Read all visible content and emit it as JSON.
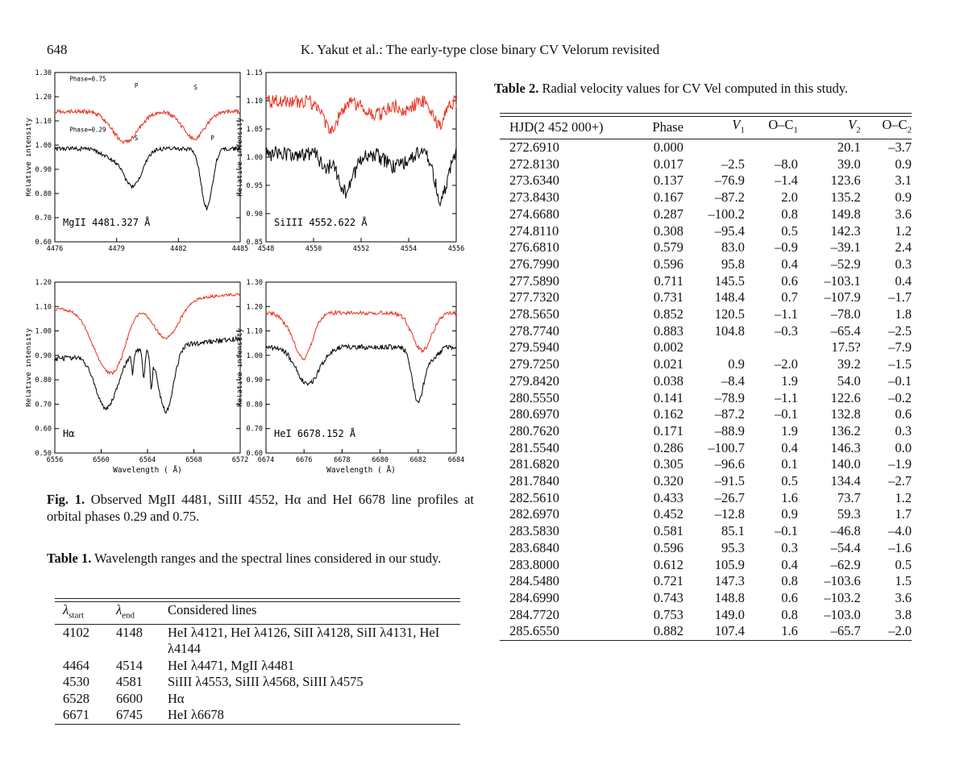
{
  "header": {
    "page_number": "648",
    "running_head": "K. Yakut et al.: The early-type close binary CV Velorum revisited"
  },
  "figure": {
    "caption_label": "Fig. 1.",
    "caption_text": "Observed MgII 4481, SiIII 4552, Hα and HeI 6678 line profiles at orbital phases 0.29 and 0.75.",
    "colors": {
      "phase_075": "#e8311f",
      "phase_029": "#000000"
    },
    "panels": [
      {
        "id": "mg",
        "label": "MgII 4481.327 Å",
        "ylabel": "Relative intensity",
        "xlabel": "",
        "yticks": [
          "0.60",
          "0.70",
          "0.80",
          "0.90",
          "1.00",
          "1.10",
          "1.20",
          "1.30"
        ],
        "xticks": [
          "4476",
          "4479",
          "4482",
          "4485"
        ],
        "annotations": [
          "Phase=0.75",
          "P",
          "S",
          "Phase=0.29",
          "S",
          "P"
        ]
      },
      {
        "id": "si",
        "label": "SiIII 4552.622 Å",
        "ylabel": "Relative intensity",
        "xlabel": "",
        "yticks": [
          "0.85",
          "0.90",
          "0.95",
          "1.00",
          "1.05",
          "1.10",
          "1.15"
        ],
        "xticks": [
          "4548",
          "4550",
          "4552",
          "4554",
          "4556"
        ],
        "annotations": []
      },
      {
        "id": "ha",
        "label": "Hα",
        "ylabel": "Relative intensity",
        "xlabel": "Wavelength ( Å)",
        "yticks": [
          "0.50",
          "0.60",
          "0.70",
          "0.80",
          "0.90",
          "1.00",
          "1.10",
          "1.20"
        ],
        "xticks": [
          "6556",
          "6560",
          "6564",
          "6568",
          "6572"
        ],
        "annotations": []
      },
      {
        "id": "he",
        "label": "HeI 6678.152 Å",
        "ylabel": "Relative intensity",
        "xlabel": "Wavelength ( Å)",
        "yticks": [
          "0.60",
          "0.70",
          "0.80",
          "0.90",
          "1.00",
          "1.10",
          "1.20",
          "1.30"
        ],
        "xticks": [
          "6674",
          "6676",
          "6678",
          "6680",
          "6682",
          "6684"
        ],
        "annotations": []
      }
    ]
  },
  "table1": {
    "caption_label": "Table 1.",
    "caption_text": "Wavelength ranges and the spectral lines considered in our study.",
    "headers": {
      "start": "λ",
      "start_sub": "start",
      "end": "λ",
      "end_sub": "end",
      "lines": "Considered lines"
    },
    "rows": [
      {
        "start": "4102",
        "end": "4148",
        "lines": "HeI λ4121, HeI λ4126, SiII λ4128, SiII λ4131, HeI λ4144"
      },
      {
        "start": "4464",
        "end": "4514",
        "lines": "HeI λ4471, MgII λ4481"
      },
      {
        "start": "4530",
        "end": "4581",
        "lines": "SiIII λ4553, SiIII λ4568, SiIII λ4575"
      },
      {
        "start": "6528",
        "end": "6600",
        "lines": "Hα"
      },
      {
        "start": "6671",
        "end": "6745",
        "lines": "HeI λ6678"
      }
    ]
  },
  "table2": {
    "caption_label": "Table 2.",
    "caption_text": "Radial velocity values for CV Vel computed in this study.",
    "headers": [
      "HJD(2 452 000+)",
      "Phase",
      "V",
      "O–C",
      "V",
      "O–C"
    ],
    "header_subs": [
      "",
      "",
      "1",
      "1",
      "2",
      "2"
    ],
    "rows": [
      [
        "272.6910",
        "0.000",
        "",
        "",
        "20.1",
        "–3.7"
      ],
      [
        "272.8130",
        "0.017",
        "–2.5",
        "–8.0",
        "39.0",
        "0.9"
      ],
      [
        "273.6340",
        "0.137",
        "–76.9",
        "–1.4",
        "123.6",
        "3.1"
      ],
      [
        "273.8430",
        "0.167",
        "–87.2",
        "2.0",
        "135.2",
        "0.9"
      ],
      [
        "274.6680",
        "0.287",
        "–100.2",
        "0.8",
        "149.8",
        "3.6"
      ],
      [
        "274.8110",
        "0.308",
        "–95.4",
        "0.5",
        "142.3",
        "1.2"
      ],
      [
        "276.6810",
        "0.579",
        "83.0",
        "–0.9",
        "–39.1",
        "2.4"
      ],
      [
        "276.7990",
        "0.596",
        "95.8",
        "0.4",
        "–52.9",
        "0.3"
      ],
      [
        "277.5890",
        "0.711",
        "145.5",
        "0.6",
        "–103.1",
        "0.4"
      ],
      [
        "277.7320",
        "0.731",
        "148.4",
        "0.7",
        "–107.9",
        "–1.7"
      ],
      [
        "278.5650",
        "0.852",
        "120.5",
        "–1.1",
        "–78.0",
        "1.8"
      ],
      [
        "278.7740",
        "0.883",
        "104.8",
        "–0.3",
        "–65.4",
        "–2.5"
      ],
      [
        "279.5940",
        "0.002",
        "",
        "",
        "17.5?",
        "–7.9"
      ],
      [
        "279.7250",
        "0.021",
        "0.9",
        "–2.0",
        "39.2",
        "–1.5"
      ],
      [
        "279.8420",
        "0.038",
        "–8.4",
        "1.9",
        "54.0",
        "–0.1"
      ],
      [
        "280.5550",
        "0.141",
        "–78.9",
        "–1.1",
        "122.6",
        "–0.2"
      ],
      [
        "280.6970",
        "0.162",
        "–87.2",
        "–0.1",
        "132.8",
        "0.6"
      ],
      [
        "280.7620",
        "0.171",
        "–88.9",
        "1.9",
        "136.2",
        "0.3"
      ],
      [
        "281.5540",
        "0.286",
        "–100.7",
        "0.4",
        "146.3",
        "0.0"
      ],
      [
        "281.6820",
        "0.305",
        "–96.6",
        "0.1",
        "140.0",
        "–1.9"
      ],
      [
        "281.7840",
        "0.320",
        "–91.5",
        "0.5",
        "134.4",
        "–2.7"
      ],
      [
        "282.5610",
        "0.433",
        "–26.7",
        "1.6",
        "73.7",
        "1.2"
      ],
      [
        "282.6970",
        "0.452",
        "–12.8",
        "0.9",
        "59.3",
        "1.7"
      ],
      [
        "283.5830",
        "0.581",
        "85.1",
        "–0.1",
        "–46.8",
        "–4.0"
      ],
      [
        "283.6840",
        "0.596",
        "95.3",
        "0.3",
        "–54.4",
        "–1.6"
      ],
      [
        "283.8000",
        "0.612",
        "105.9",
        "0.4",
        "–62.9",
        "0.5"
      ],
      [
        "284.5480",
        "0.721",
        "147.3",
        "0.8",
        "–103.6",
        "1.5"
      ],
      [
        "284.6990",
        "0.743",
        "148.8",
        "0.6",
        "–103.2",
        "3.6"
      ],
      [
        "284.7720",
        "0.753",
        "149.0",
        "0.8",
        "–103.0",
        "3.8"
      ],
      [
        "285.6550",
        "0.882",
        "107.4",
        "1.6",
        "–65.7",
        "–2.0"
      ]
    ]
  }
}
